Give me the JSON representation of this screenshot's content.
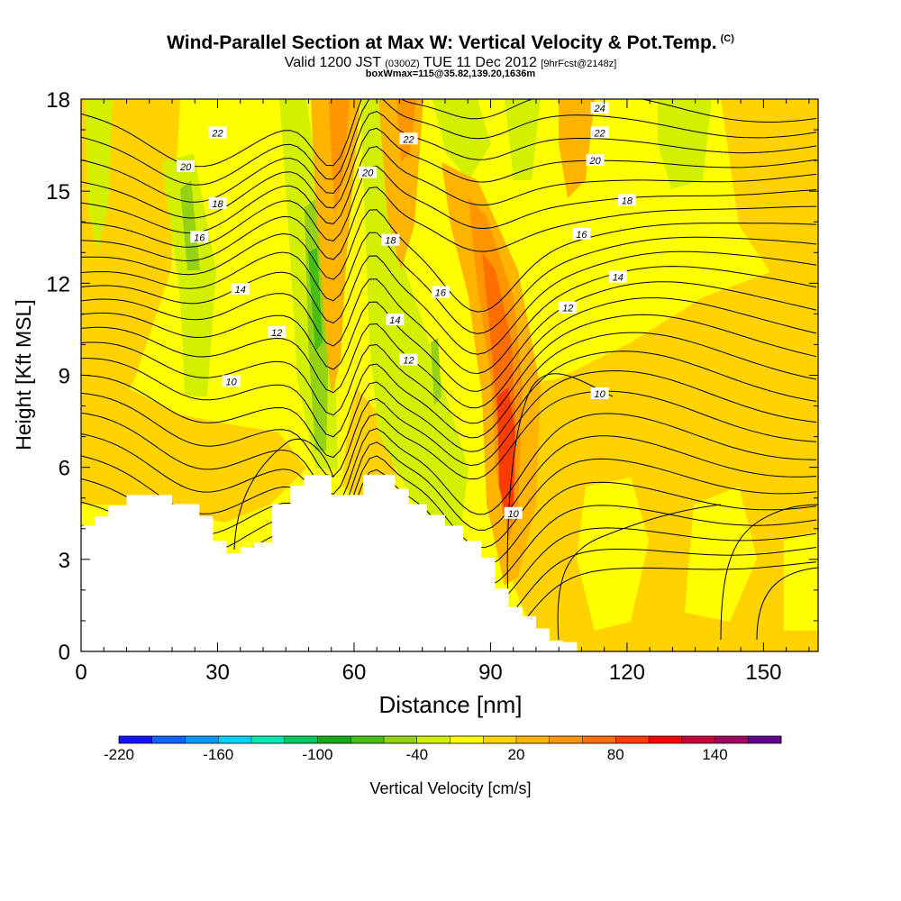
{
  "header": {
    "title": "Wind-Parallel Section at Max W: Vertical Velocity & Pot.Temp.",
    "title_mark": "(C)",
    "valid_prefix": "Valid 1200 JST",
    "valid_utc": "(0300Z)",
    "valid_date": "TUE 11 Dec 2012",
    "valid_fcst": "[9hrFcst@2148z]",
    "box_info": "boxWmax=115@35.82,139.20,1636m"
  },
  "chart_data": {
    "type": "heatmap",
    "title": "Wind-Parallel Section at Max W: Vertical Velocity & Pot.Temp.",
    "xlabel": "Distance [nm]",
    "ylabel": "Height [Kft MSL]",
    "xlim": [
      0,
      162
    ],
    "ylim": [
      0,
      18
    ],
    "x_ticks": [
      "0",
      "30",
      "60",
      "90",
      "120",
      "150"
    ],
    "y_ticks": [
      "0",
      "3",
      "6",
      "9",
      "12",
      "15",
      "18"
    ],
    "colorbar": {
      "label": "Vertical Velocity [cm/s]",
      "tick_labels": [
        "-220",
        "-160",
        "-100",
        "-40",
        "20",
        "80",
        "140"
      ],
      "colors": [
        "#1414ff",
        "#0a64ff",
        "#0a96ff",
        "#00d2ff",
        "#00e6b4",
        "#00c864",
        "#14aa14",
        "#46be14",
        "#96d214",
        "#d2f000",
        "#ffff00",
        "#ffd200",
        "#ffb400",
        "#ff9600",
        "#ff6e00",
        "#ff3c00",
        "#ff0000",
        "#c8003c",
        "#a00064",
        "#64008c"
      ]
    },
    "terrain_top_kft": [
      [
        0,
        4.1
      ],
      [
        3,
        4.4
      ],
      [
        6,
        4.75
      ],
      [
        10,
        5.1
      ],
      [
        20,
        4.8
      ],
      [
        26,
        4.4
      ],
      [
        29,
        3.6
      ],
      [
        32,
        3.2
      ],
      [
        35,
        3.4
      ],
      [
        38,
        3.55
      ],
      [
        42,
        4.8
      ],
      [
        46,
        5.4
      ],
      [
        49,
        5.75
      ],
      [
        55,
        5.1
      ],
      [
        62,
        5.75
      ],
      [
        69,
        5.3
      ],
      [
        72,
        4.8
      ],
      [
        76,
        4.45
      ],
      [
        80,
        4.1
      ],
      [
        84,
        3.6
      ],
      [
        88,
        3.05
      ],
      [
        91,
        2.05
      ],
      [
        94,
        1.45
      ],
      [
        97,
        1.15
      ],
      [
        100,
        0.75
      ],
      [
        103,
        0.35
      ],
      [
        106,
        0.3
      ]
    ],
    "contour_labels": [
      {
        "text": "22",
        "x": 30,
        "y": 16.9
      },
      {
        "text": "20",
        "x": 23,
        "y": 15.8
      },
      {
        "text": "18",
        "x": 30,
        "y": 14.6
      },
      {
        "text": "16",
        "x": 26,
        "y": 13.5
      },
      {
        "text": "14",
        "x": 35,
        "y": 11.8
      },
      {
        "text": "12",
        "x": 43,
        "y": 10.4
      },
      {
        "text": "10",
        "x": 33,
        "y": 8.8
      },
      {
        "text": "20",
        "x": 63,
        "y": 15.6
      },
      {
        "text": "22",
        "x": 72,
        "y": 16.7
      },
      {
        "text": "18",
        "x": 68,
        "y": 13.4
      },
      {
        "text": "16",
        "x": 79,
        "y": 11.7
      },
      {
        "text": "14",
        "x": 69,
        "y": 10.8
      },
      {
        "text": "12",
        "x": 72,
        "y": 9.5
      },
      {
        "text": "24",
        "x": 114,
        "y": 17.7
      },
      {
        "text": "22",
        "x": 114,
        "y": 16.9
      },
      {
        "text": "20",
        "x": 113,
        "y": 16.0
      },
      {
        "text": "18",
        "x": 120,
        "y": 14.7
      },
      {
        "text": "16",
        "x": 110,
        "y": 13.6
      },
      {
        "text": "14",
        "x": 118,
        "y": 12.2
      },
      {
        "text": "12",
        "x": 107,
        "y": 11.2
      },
      {
        "text": "10",
        "x": 114,
        "y": 8.4
      },
      {
        "text": "10",
        "x": 95,
        "y": 4.5
      }
    ]
  }
}
